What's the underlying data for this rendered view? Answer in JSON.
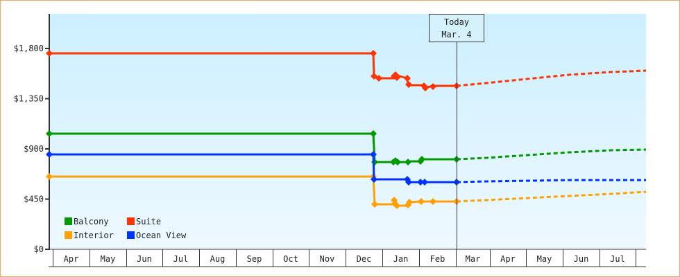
{
  "chart_data": {
    "type": "line",
    "title": "",
    "xlabel": "",
    "ylabel": "",
    "ylim": [
      0,
      2100
    ],
    "yticks": [
      {
        "value": 0,
        "label": "$0"
      },
      {
        "value": 450,
        "label": "$450"
      },
      {
        "value": 900,
        "label": "$900"
      },
      {
        "value": 1350,
        "label": "$1,350"
      },
      {
        "value": 1800,
        "label": "$1,800"
      }
    ],
    "months": [
      "Apr",
      "May",
      "Jun",
      "Jul",
      "Aug",
      "Sep",
      "Oct",
      "Nov",
      "Dec",
      "Jan",
      "Feb",
      "Mar",
      "Apr",
      "May",
      "Jun",
      "Jul"
    ],
    "grid": false,
    "legend_position": "bottom-left inside",
    "today_marker": {
      "line1": "Today",
      "line2": "Mar. 4"
    },
    "series": [
      {
        "name": "Balcony",
        "color": "#009900",
        "historical": [
          [
            "Apr",
            1035
          ],
          [
            "Dec",
            1035
          ],
          [
            "Dec",
            790
          ],
          [
            "Jan",
            795
          ],
          [
            "Jan",
            790
          ],
          [
            "Feb",
            800
          ],
          [
            "Mar 4",
            805
          ]
        ],
        "projected": [
          [
            "Mar 4",
            805
          ],
          [
            "Jul",
            895
          ]
        ]
      },
      {
        "name": "Suite",
        "color": "#ff3300",
        "historical": [
          [
            "Apr",
            1760
          ],
          [
            "Dec",
            1760
          ],
          [
            "Dec",
            1550
          ],
          [
            "Jan",
            1540
          ],
          [
            "Jan",
            1550
          ],
          [
            "Feb",
            1480
          ],
          [
            "Mar 4",
            1465
          ]
        ],
        "projected": [
          [
            "Mar 4",
            1465
          ],
          [
            "Jul",
            1600
          ]
        ]
      },
      {
        "name": "Interior",
        "color": "#ffa000",
        "historical": [
          [
            "Apr",
            650
          ],
          [
            "Dec",
            650
          ],
          [
            "Dec",
            405
          ],
          [
            "Jan",
            410
          ],
          [
            "Jan",
            400
          ],
          [
            "Feb",
            430
          ],
          [
            "Mar 4",
            428
          ]
        ],
        "projected": [
          [
            "Mar 4",
            428
          ],
          [
            "Jul",
            515
          ]
        ]
      },
      {
        "name": "Ocean View",
        "color": "#0033ff",
        "historical": [
          [
            "Apr",
            850
          ],
          [
            "Dec",
            850
          ],
          [
            "Dec",
            625
          ],
          [
            "Jan",
            620
          ],
          [
            "Jan",
            605
          ],
          [
            "Feb",
            605
          ],
          [
            "Mar 4",
            602
          ]
        ],
        "projected": [
          [
            "Mar 4",
            602
          ],
          [
            "Jul",
            620
          ]
        ]
      }
    ]
  }
}
